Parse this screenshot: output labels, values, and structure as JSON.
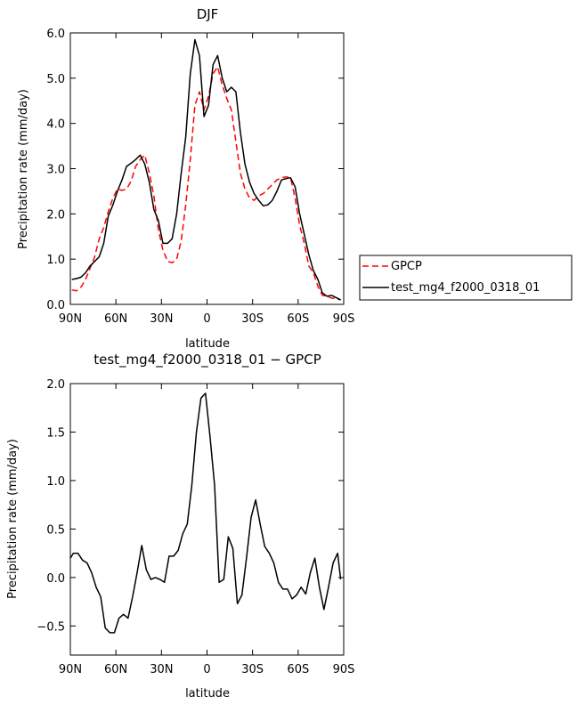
{
  "chart_data": [
    {
      "type": "line",
      "title": "DJF",
      "xlabel": "latitude",
      "ylabel": "Precipitation rate (mm/day)",
      "xlim": [
        90,
        -90
      ],
      "ylim": [
        0,
        6
      ],
      "x_ticks": [
        90,
        60,
        30,
        0,
        -30,
        -60,
        -90
      ],
      "x_tick_labels": [
        "90N",
        "60N",
        "30N",
        "0",
        "30S",
        "60S",
        "90S"
      ],
      "y_ticks": [
        0,
        1,
        2,
        3,
        4,
        5,
        6
      ],
      "y_tick_labels": [
        "0.0",
        "1.0",
        "2.0",
        "3.0",
        "4.0",
        "5.0",
        "6.0"
      ],
      "grid": false,
      "legend_position": "right",
      "series": [
        {
          "name": "GPCP",
          "color": "#ff0000",
          "dash": "dashed",
          "x": [
            89,
            86,
            83,
            80,
            77,
            74,
            71,
            68,
            65,
            62,
            59,
            56,
            53,
            50,
            47,
            44,
            41,
            38,
            35,
            32,
            29,
            26,
            23,
            20,
            17,
            14,
            11,
            8,
            5,
            2,
            -1,
            -4,
            -7,
            -10,
            -13,
            -16,
            -19,
            -22,
            -25,
            -28,
            -31,
            -34,
            -37,
            -40,
            -43,
            -46,
            -49,
            -52,
            -55,
            -58,
            -61,
            -64,
            -67,
            -70,
            -73,
            -76,
            -79,
            -82,
            -85,
            -88
          ],
          "y": [
            0.32,
            0.3,
            0.38,
            0.55,
            0.8,
            1.05,
            1.45,
            1.7,
            2.05,
            2.35,
            2.55,
            2.52,
            2.55,
            2.72,
            3.05,
            3.2,
            3.3,
            2.9,
            2.4,
            1.65,
            1.2,
            0.95,
            0.92,
            1.0,
            1.4,
            2.2,
            3.2,
            4.4,
            4.7,
            4.3,
            4.6,
            5.1,
            5.25,
            4.85,
            4.55,
            4.3,
            3.6,
            2.9,
            2.55,
            2.35,
            2.3,
            2.4,
            2.45,
            2.55,
            2.65,
            2.75,
            2.8,
            2.82,
            2.8,
            2.35,
            1.75,
            1.35,
            0.85,
            0.7,
            0.4,
            0.2,
            0.18,
            0.14,
            0.12,
            0.1
          ]
        },
        {
          "name": "test_mg4_f2000_0318_01",
          "color": "#000000",
          "dash": "solid",
          "x": [
            89,
            86,
            83,
            80,
            77,
            74,
            71,
            68,
            65,
            62,
            59,
            56,
            53,
            50,
            47,
            44,
            41,
            38,
            35,
            32,
            29,
            26,
            23,
            20,
            17,
            14,
            11,
            8,
            5,
            2,
            -1,
            -4,
            -7,
            -10,
            -13,
            -16,
            -19,
            -22,
            -25,
            -28,
            -31,
            -34,
            -37,
            -40,
            -43,
            -46,
            -49,
            -52,
            -55,
            -58,
            -61,
            -64,
            -67,
            -70,
            -73,
            -76,
            -79,
            -82,
            -85,
            -88
          ],
          "y": [
            0.55,
            0.57,
            0.6,
            0.7,
            0.85,
            0.95,
            1.05,
            1.35,
            1.95,
            2.2,
            2.5,
            2.75,
            3.05,
            3.12,
            3.2,
            3.3,
            3.1,
            2.7,
            2.1,
            1.85,
            1.35,
            1.35,
            1.45,
            2.0,
            2.9,
            3.7,
            5.1,
            5.85,
            5.5,
            4.15,
            4.4,
            5.3,
            5.5,
            5.0,
            4.7,
            4.8,
            4.7,
            3.8,
            3.1,
            2.7,
            2.45,
            2.3,
            2.18,
            2.2,
            2.3,
            2.5,
            2.75,
            2.78,
            2.8,
            2.6,
            2.0,
            1.55,
            1.1,
            0.75,
            0.55,
            0.25,
            0.18,
            0.2,
            0.15,
            0.1
          ]
        }
      ]
    },
    {
      "type": "line",
      "title": "test_mg4_f2000_0318_01 − GPCP",
      "xlabel": "latitude",
      "ylabel": "Precipitation rate (mm/day)",
      "xlim": [
        90,
        -90
      ],
      "ylim": [
        -0.8,
        2.0
      ],
      "x_ticks": [
        90,
        60,
        30,
        0,
        -30,
        -60,
        -90
      ],
      "x_tick_labels": [
        "90N",
        "60N",
        "30N",
        "0",
        "30S",
        "60S",
        "90S"
      ],
      "y_ticks": [
        -0.5,
        0,
        0.5,
        1.0,
        1.5,
        2.0
      ],
      "y_tick_labels": [
        "−0.5",
        "0.0",
        "0.5",
        "1.0",
        "1.5",
        "2.0"
      ],
      "grid": false,
      "series": [
        {
          "color": "#000000",
          "dash": "solid",
          "x": [
            90,
            88,
            85,
            82,
            79,
            76,
            73,
            70,
            67,
            64,
            61,
            58,
            55,
            52,
            49,
            46,
            43,
            40,
            37,
            34,
            31,
            28,
            25,
            22,
            19,
            16,
            13,
            10,
            7,
            4,
            1,
            -2,
            -5,
            -8,
            -11,
            -14,
            -17,
            -20,
            -23,
            -26,
            -29,
            -32,
            -35,
            -38,
            -41,
            -44,
            -47,
            -50,
            -53,
            -56,
            -59,
            -62,
            -65,
            -68,
            -71,
            -74,
            -77,
            -80,
            -83,
            -86,
            -88
          ],
          "y": [
            0.2,
            0.25,
            0.25,
            0.18,
            0.15,
            0.05,
            -0.1,
            -0.2,
            -0.52,
            -0.57,
            -0.57,
            -0.42,
            -0.38,
            -0.42,
            -0.2,
            0.05,
            0.33,
            0.08,
            -0.02,
            0.0,
            -0.02,
            -0.05,
            0.22,
            0.22,
            0.28,
            0.45,
            0.55,
            0.95,
            1.5,
            1.85,
            1.9,
            1.45,
            0.95,
            -0.05,
            -0.02,
            0.42,
            0.3,
            -0.27,
            -0.18,
            0.2,
            0.62,
            0.8,
            0.55,
            0.32,
            0.25,
            0.15,
            -0.05,
            -0.12,
            -0.12,
            -0.22,
            -0.18,
            -0.1,
            -0.17,
            0.05,
            0.2,
            -0.1,
            -0.33,
            -0.1,
            0.15,
            0.25,
            -0.02
          ]
        }
      ]
    }
  ]
}
